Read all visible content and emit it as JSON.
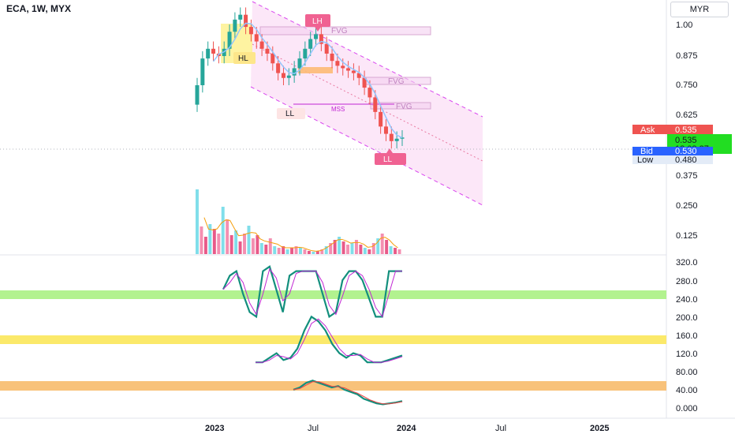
{
  "header": {
    "title": "ECA, 1W, MYX",
    "currency": "MYR"
  },
  "price_panel": {
    "tick_labels": [
      "1.00",
      "0.875",
      "0.750",
      "0.625",
      "0.375",
      "0.250",
      "0.125"
    ],
    "ask": {
      "label": "Ask",
      "value": "0.535"
    },
    "last": {
      "value": "0.535",
      "countdown": "18:08:27"
    },
    "bid": {
      "label": "Bid",
      "value": "0.530"
    },
    "low": {
      "label": "Low",
      "value": "0.480"
    },
    "annotations": {
      "lh": "LH",
      "hl": "HL",
      "ll_left": "LL",
      "ll_right": "LL",
      "fvg": "FVG",
      "mss": "MSS"
    }
  },
  "osc_panel": {
    "tick_labels": [
      "320.0",
      "280.0",
      "240.0",
      "200.0",
      "160.0",
      "120.0",
      "80.00",
      "40.00",
      "0.000"
    ]
  },
  "x_axis": {
    "labels": [
      "2023",
      "Jul",
      "2024",
      "Jul",
      "2025"
    ]
  },
  "colors": {
    "up": "#26a69a",
    "down": "#ef5350",
    "channel": "#e040fb",
    "green_band": "#b2f28f",
    "yellow_band": "#fbe96a",
    "orange_band": "#f8c27a",
    "osc_main": "#138f7d",
    "osc_signal": "#c026d3"
  },
  "chart_data": {
    "type": "line",
    "series": [
      {
        "values": [
          0.75,
          0.86,
          0.9,
          0.88,
          0.87,
          0.9,
          0.97,
          1.02,
          1.04,
          0.99,
          0.96,
          0.93,
          0.9,
          0.88,
          0.84,
          0.8,
          0.78,
          0.79,
          0.82,
          0.86,
          0.9,
          0.94,
          0.96,
          0.92,
          0.88,
          0.85,
          0.83,
          0.82,
          0.81,
          0.8,
          0.78,
          0.74,
          0.7,
          0.64,
          0.58,
          0.55,
          0.52,
          0.53,
          0.535
        ]
      },
      {
        "values": [
          260,
          290,
          300,
          250,
          210,
          200,
          300,
          310,
          260,
          210,
          290,
          300,
          300,
          300,
          300,
          250,
          200,
          210,
          280,
          300,
          300,
          280,
          240,
          200,
          200,
          300,
          300,
          300
        ]
      },
      {
        "values": [
          100,
          100,
          110,
          120,
          105,
          110,
          130,
          170,
          200,
          190,
          170,
          140,
          120,
          110,
          120,
          115,
          100,
          100,
          100,
          105,
          110,
          115
        ]
      },
      {
        "values": [
          40,
          45,
          55,
          60,
          55,
          50,
          45,
          48,
          40,
          35,
          30,
          20,
          15,
          10,
          8,
          10,
          12,
          15
        ]
      }
    ]
  }
}
